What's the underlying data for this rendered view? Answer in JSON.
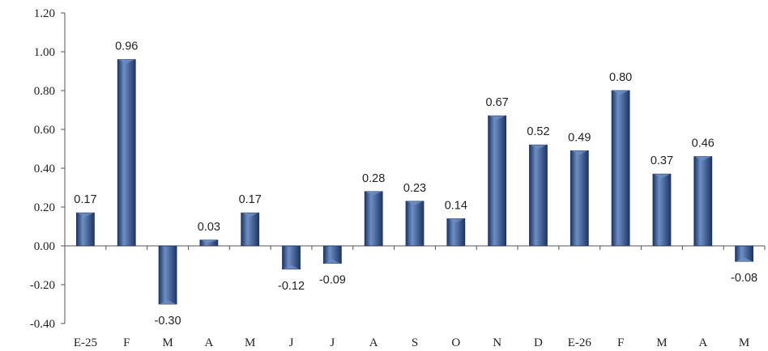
{
  "chart_data": {
    "type": "bar",
    "categories": [
      "E-25",
      "F",
      "M",
      "A",
      "M",
      "J",
      "J",
      "A",
      "S",
      "O",
      "N",
      "D",
      "E-26",
      "F",
      "M",
      "A",
      "M"
    ],
    "values": [
      0.17,
      0.96,
      -0.3,
      0.03,
      0.17,
      -0.12,
      -0.09,
      0.28,
      0.23,
      0.14,
      0.67,
      0.52,
      0.49,
      0.8,
      0.37,
      0.46,
      -0.08
    ],
    "data_labels": [
      "0.17",
      "0.96",
      "-0.30",
      "0.03",
      "0.17",
      "-0.12",
      "-0.09",
      "0.28",
      "0.23",
      "0.14",
      "0.67",
      "0.52",
      "0.49",
      "0.80",
      "0.37",
      "0.46",
      "-0.08"
    ],
    "y_ticks": [
      "1.20",
      "1.00",
      "0.80",
      "0.60",
      "0.40",
      "0.20",
      "0.00",
      "-0.20",
      "-0.40"
    ],
    "y_tick_values": [
      1.2,
      1.0,
      0.8,
      0.6,
      0.4,
      0.2,
      0.0,
      -0.2,
      -0.4
    ],
    "ylim": [
      -0.4,
      1.2
    ],
    "title": "",
    "xlabel": "",
    "ylabel": "",
    "grid": false,
    "legend": "none",
    "colors": {
      "bar_fill": "#2f4f86",
      "bar_light": "#6e8fc4",
      "bar_dark": "#1d3566",
      "axis": "#555555",
      "text": "#222222"
    }
  }
}
